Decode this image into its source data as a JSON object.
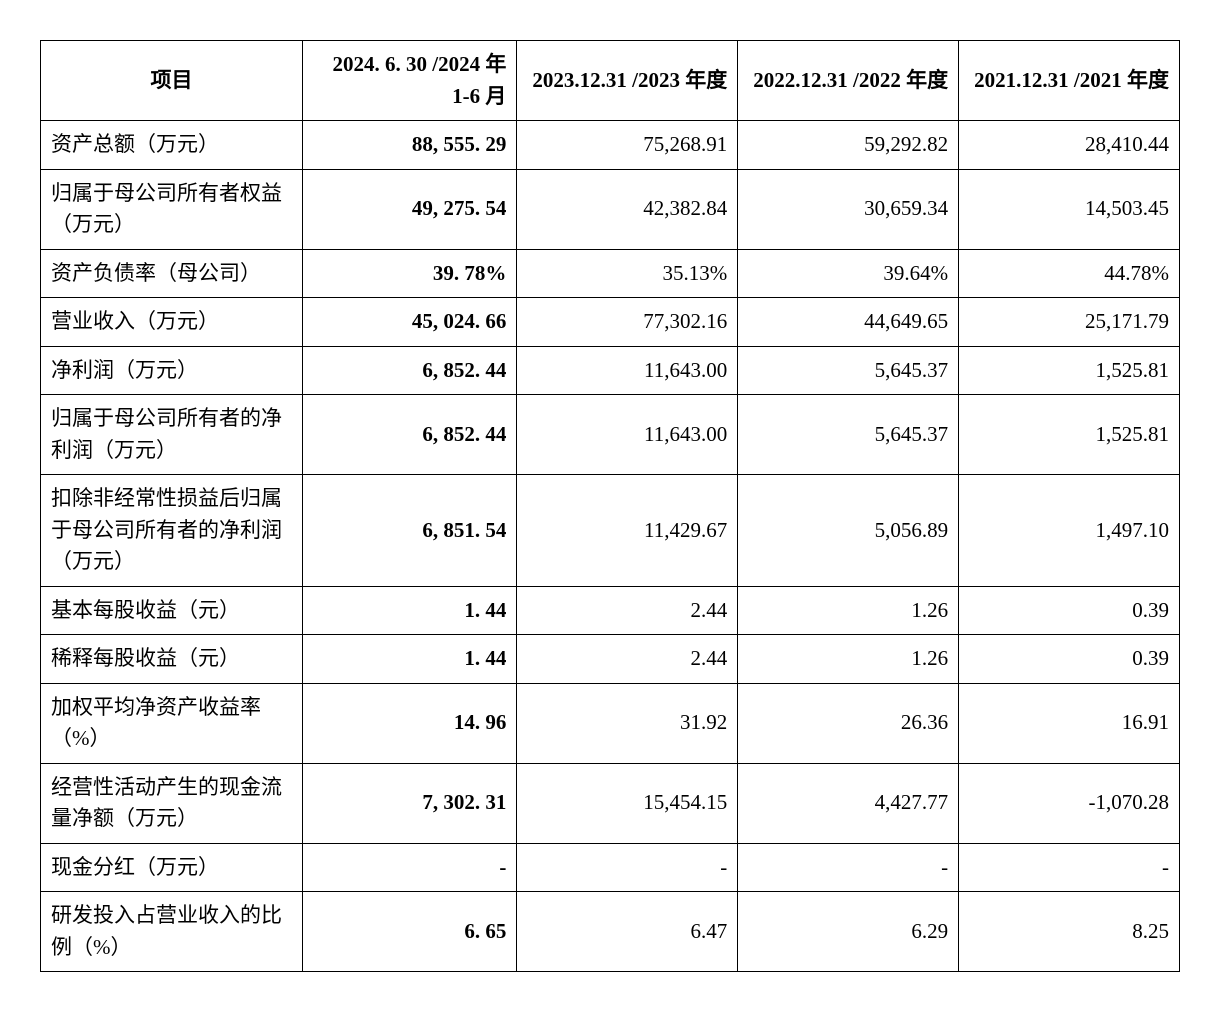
{
  "table": {
    "headers": {
      "item": "项目",
      "period_2024h1": "2024. 6. 30 /2024 年 1-6 月",
      "period_2023": "2023.12.31 /2023 年度",
      "period_2022": "2022.12.31 /2022 年度",
      "period_2021": "2021.12.31 /2021 年度"
    },
    "rows": [
      {
        "item": "资产总额（万元）",
        "v2024h1": "88, 555. 29",
        "v2023": "75,268.91",
        "v2022": "59,292.82",
        "v2021": "28,410.44"
      },
      {
        "item": "归属于母公司所有者权益（万元）",
        "v2024h1": "49, 275. 54",
        "v2023": "42,382.84",
        "v2022": "30,659.34",
        "v2021": "14,503.45"
      },
      {
        "item": "资产负债率（母公司）",
        "v2024h1": "39. 78%",
        "v2023": "35.13%",
        "v2022": "39.64%",
        "v2021": "44.78%"
      },
      {
        "item": "营业收入（万元）",
        "v2024h1": "45, 024. 66",
        "v2023": "77,302.16",
        "v2022": "44,649.65",
        "v2021": "25,171.79"
      },
      {
        "item": "净利润（万元）",
        "v2024h1": "6, 852. 44",
        "v2023": "11,643.00",
        "v2022": "5,645.37",
        "v2021": "1,525.81"
      },
      {
        "item": "归属于母公司所有者的净利润（万元）",
        "v2024h1": "6, 852. 44",
        "v2023": "11,643.00",
        "v2022": "5,645.37",
        "v2021": "1,525.81"
      },
      {
        "item": "扣除非经常性损益后归属于母公司所有者的净利润（万元）",
        "v2024h1": "6, 851. 54",
        "v2023": "11,429.67",
        "v2022": "5,056.89",
        "v2021": "1,497.10"
      },
      {
        "item": "基本每股收益（元）",
        "v2024h1": "1. 44",
        "v2023": "2.44",
        "v2022": "1.26",
        "v2021": "0.39"
      },
      {
        "item": "稀释每股收益（元）",
        "v2024h1": "1. 44",
        "v2023": "2.44",
        "v2022": "1.26",
        "v2021": "0.39"
      },
      {
        "item": "加权平均净资产收益率（%）",
        "v2024h1": "14. 96",
        "v2023": "31.92",
        "v2022": "26.36",
        "v2021": "16.91"
      },
      {
        "item": "经营性活动产生的现金流量净额（万元）",
        "v2024h1": "7, 302. 31",
        "v2023": "15,454.15",
        "v2022": "4,427.77",
        "v2021": "-1,070.28"
      },
      {
        "item": "现金分红（万元）",
        "v2024h1": "-",
        "v2023": "-",
        "v2022": "-",
        "v2021": "-"
      },
      {
        "item": "研发投入占营业收入的比例（%）",
        "v2024h1": "6. 65",
        "v2023": "6.47",
        "v2022": "6.29",
        "v2021": "8.25"
      }
    ]
  },
  "styling": {
    "border_color": "#000000",
    "background_color": "#ffffff",
    "text_color": "#000000",
    "font_size_pt": 16,
    "header_font_weight": "bold",
    "current_period_font_weight": "bold"
  }
}
